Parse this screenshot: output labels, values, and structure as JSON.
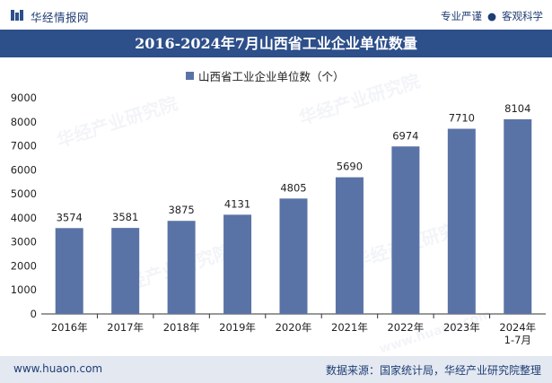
{
  "header": {
    "brand": "华经情报网",
    "tagline_left": "专业严谨",
    "tagline_right": "客观科学"
  },
  "colors": {
    "title_bg": "#2d4f8a",
    "bar": "#5a73a6",
    "footer_bg": "#e3e8f1",
    "brand": "#1f3d73"
  },
  "footer": {
    "url": "www.huaon.com",
    "source": "数据来源：国家统计局，华经产业研究院整理"
  },
  "watermark": {
    "text": "华经产业研究院",
    "url": "www.huaon.com"
  },
  "chart_data": {
    "type": "bar",
    "title": "2016-2024年7月山西省工业企业单位数量",
    "categories": [
      "2016年",
      "2017年",
      "2018年",
      "2019年",
      "2020年",
      "2021年",
      "2022年",
      "2023年",
      "2024年\n1-7月"
    ],
    "series": [
      {
        "name": "山西省工业企业单位数（个）",
        "values": [
          3574,
          3581,
          3875,
          4131,
          4805,
          5690,
          6974,
          7710,
          8104
        ]
      }
    ],
    "ylim": [
      0,
      9000
    ],
    "yticks": [
      0,
      1000,
      2000,
      3000,
      4000,
      5000,
      6000,
      7000,
      8000,
      9000
    ],
    "xlabel": "",
    "ylabel": "",
    "legend_position": "top-center",
    "grid": false
  }
}
